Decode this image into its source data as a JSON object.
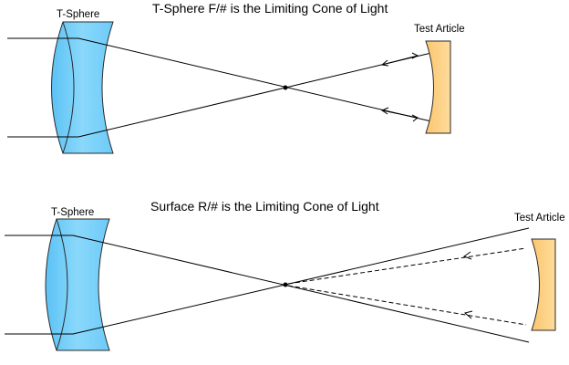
{
  "panels": [
    {
      "title": "T-Sphere F/# is the Limiting Cone of Light",
      "tsphere_label": "T-Sphere",
      "test_article_label": "Test Article"
    },
    {
      "title": "Surface R/# is the Limiting Cone of Light",
      "tsphere_label": "T-Sphere",
      "test_article_label": "Test Article"
    }
  ],
  "colors": {
    "tsphere_fill": "#7ad0fa",
    "test_article_fill": "#fdd28a",
    "ray": "#000000"
  }
}
